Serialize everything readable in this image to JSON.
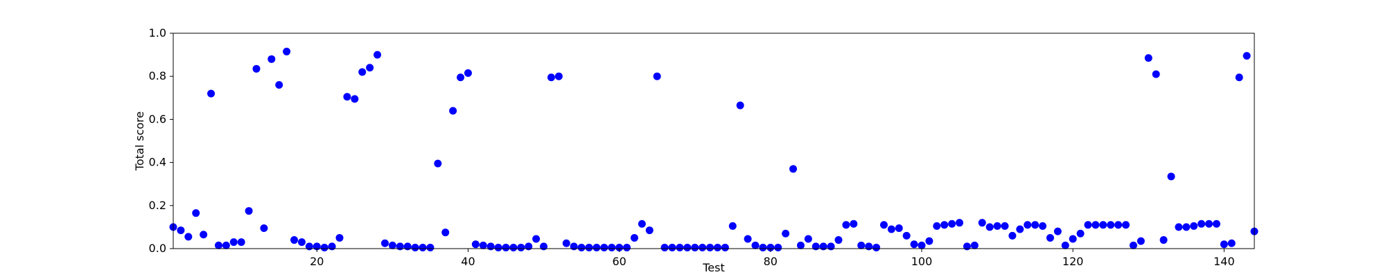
{
  "chart_data": {
    "type": "scatter",
    "title": "",
    "xlabel": "Test",
    "ylabel": "Total score",
    "xlim": [
      1,
      144
    ],
    "ylim": [
      0.0,
      1.0
    ],
    "x_ticks": [
      20,
      40,
      60,
      80,
      100,
      120,
      140
    ],
    "x_tick_labels": [
      "20",
      "40",
      "60",
      "80",
      "100",
      "120",
      "140"
    ],
    "y_ticks": [
      0.0,
      0.2,
      0.4,
      0.6,
      0.8,
      1.0
    ],
    "y_tick_labels": [
      "0.0",
      "0.2",
      "0.4",
      "0.6",
      "0.8",
      "1.0"
    ],
    "grid": false,
    "legend": "none",
    "marker_color": "#0000ff",
    "series": [
      {
        "x": [
          1,
          2,
          3,
          4,
          5,
          6,
          7,
          8,
          9,
          10,
          11,
          12,
          13,
          14,
          15,
          16,
          17,
          18,
          19,
          20,
          21,
          22,
          23,
          24,
          25,
          26,
          27,
          28,
          29,
          30,
          31,
          32,
          33,
          34,
          35,
          36,
          37,
          38,
          39,
          40,
          41,
          42,
          43,
          44,
          45,
          46,
          47,
          48,
          49,
          50,
          51,
          52,
          53,
          54,
          55,
          56,
          57,
          58,
          59,
          60,
          61,
          62,
          63,
          64,
          65,
          66,
          67,
          68,
          69,
          70,
          71,
          72,
          73,
          74,
          75,
          76,
          77,
          78,
          79,
          80,
          81,
          82,
          83,
          84,
          85,
          86,
          87,
          88,
          89,
          90,
          91,
          92,
          93,
          94,
          95,
          96,
          97,
          98,
          99,
          100,
          101,
          102,
          103,
          104,
          105,
          106,
          107,
          108,
          109,
          110,
          111,
          112,
          113,
          114,
          115,
          116,
          117,
          118,
          119,
          120,
          121,
          122,
          123,
          124,
          125,
          126,
          127,
          128,
          129,
          130,
          131,
          132,
          133,
          134,
          135,
          136,
          137,
          138,
          139,
          140,
          141,
          142,
          143,
          144
        ],
        "values": [
          0.1,
          0.085,
          0.055,
          0.165,
          0.065,
          0.72,
          0.015,
          0.015,
          0.03,
          0.03,
          0.175,
          0.835,
          0.095,
          0.88,
          0.76,
          0.915,
          0.04,
          0.03,
          0.01,
          0.01,
          0.005,
          0.01,
          0.05,
          0.705,
          0.695,
          0.82,
          0.84,
          0.9,
          0.025,
          0.015,
          0.01,
          0.01,
          0.005,
          0.005,
          0.005,
          0.395,
          0.075,
          0.64,
          0.795,
          0.815,
          0.02,
          0.015,
          0.01,
          0.005,
          0.005,
          0.005,
          0.005,
          0.01,
          0.045,
          0.01,
          0.795,
          0.8,
          0.025,
          0.01,
          0.005,
          0.005,
          0.005,
          0.005,
          0.005,
          0.005,
          0.005,
          0.05,
          0.115,
          0.085,
          0.8,
          0.005,
          0.005,
          0.005,
          0.005,
          0.005,
          0.005,
          0.005,
          0.005,
          0.005,
          0.105,
          0.665,
          0.045,
          0.015,
          0.005,
          0.005,
          0.005,
          0.07,
          0.37,
          0.015,
          0.045,
          0.01,
          0.01,
          0.01,
          0.04,
          0.11,
          0.115,
          0.015,
          0.01,
          0.005,
          0.11,
          0.09,
          0.095,
          0.06,
          0.02,
          0.015,
          0.035,
          0.105,
          0.11,
          0.115,
          0.12,
          0.01,
          0.015,
          0.12,
          0.1,
          0.105,
          0.105,
          0.06,
          0.09,
          0.11,
          0.11,
          0.105,
          0.05,
          0.08,
          0.015,
          0.045,
          0.07,
          0.11,
          0.11,
          0.11,
          0.11,
          0.11,
          0.11,
          0.015,
          0.035,
          0.885,
          0.81,
          0.04,
          0.335,
          0.1,
          0.1,
          0.105,
          0.115,
          0.115,
          0.115,
          0.02,
          0.025,
          0.795,
          0.895,
          0.08
        ]
      }
    ]
  }
}
